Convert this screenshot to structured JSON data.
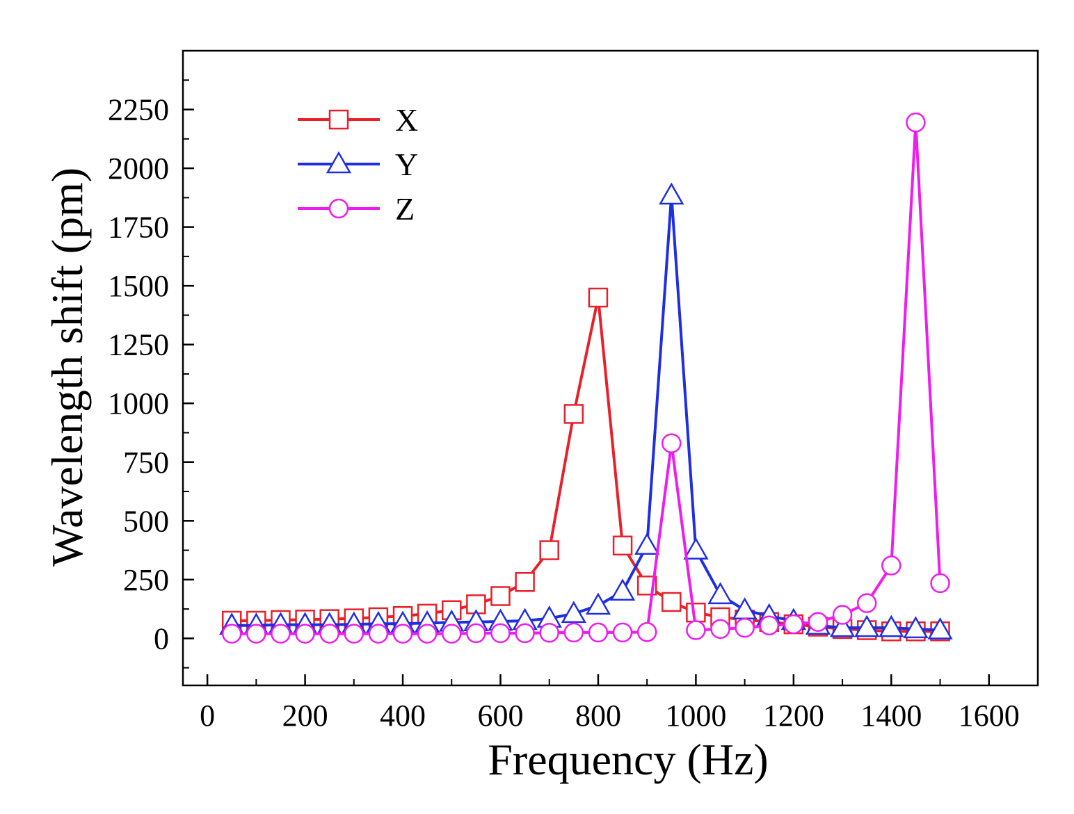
{
  "chart_data": {
    "type": "line",
    "title": "",
    "xlabel": "Frequency (Hz)",
    "ylabel": "Wavelength shift (pm)",
    "xlim": [
      -50,
      1700
    ],
    "ylim": [
      -200,
      2500
    ],
    "xticks": [
      0,
      200,
      400,
      600,
      800,
      1000,
      1200,
      1400,
      1600
    ],
    "xtick_labels": [
      "0",
      "200",
      "400",
      "600",
      "800",
      "1000",
      "1200",
      "1400",
      "1600"
    ],
    "yticks": [
      0,
      250,
      500,
      750,
      1000,
      1250,
      1500,
      1750,
      2000,
      2250
    ],
    "ytick_labels": [
      "0",
      "250",
      "500",
      "750",
      "1000",
      "1250",
      "1500",
      "1750",
      "2000",
      "2250"
    ],
    "legend_position": "top-left",
    "x": [
      50,
      100,
      150,
      200,
      250,
      300,
      350,
      400,
      450,
      500,
      550,
      600,
      650,
      700,
      750,
      800,
      850,
      900,
      950,
      1000,
      1050,
      1100,
      1150,
      1200,
      1250,
      1300,
      1350,
      1400,
      1450,
      1500
    ],
    "series": [
      {
        "name": "X",
        "color": "#e8202a",
        "marker": "square",
        "values": [
          75,
          75,
          78,
          80,
          82,
          85,
          90,
          95,
          105,
          120,
          145,
          180,
          240,
          375,
          955,
          1450,
          395,
          225,
          155,
          110,
          90,
          80,
          70,
          60,
          50,
          40,
          35,
          30,
          30,
          30
        ]
      },
      {
        "name": "Y",
        "color": "#1f2ee0",
        "marker": "triangle",
        "values": [
          55,
          55,
          58,
          58,
          58,
          60,
          62,
          63,
          65,
          68,
          70,
          72,
          75,
          85,
          105,
          140,
          200,
          395,
          1885,
          375,
          185,
          120,
          95,
          75,
          55,
          45,
          45,
          45,
          40,
          35
        ]
      },
      {
        "name": "Z",
        "color": "#ee1cee",
        "marker": "circle",
        "values": [
          20,
          20,
          20,
          20,
          20,
          20,
          20,
          20,
          20,
          20,
          22,
          22,
          22,
          24,
          25,
          25,
          25,
          27,
          830,
          35,
          40,
          45,
          55,
          60,
          70,
          100,
          150,
          310,
          2195,
          235
        ]
      }
    ]
  }
}
